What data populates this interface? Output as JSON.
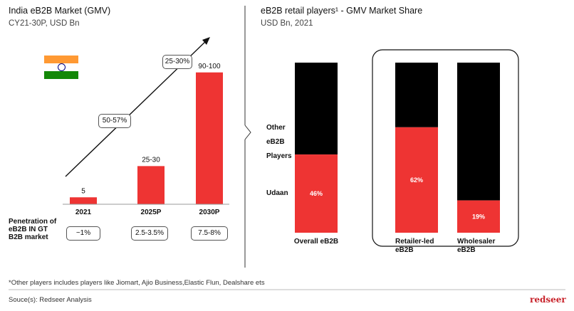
{
  "left": {
    "title": "India eB2B Market (GMV)",
    "subtitle": "CY21-30P, USD Bn",
    "growth_labels": [
      "50-57%",
      "25-30%"
    ],
    "penetration_label": [
      "Penetration of",
      "eB2B IN GT",
      "B2B market"
    ],
    "penetration_values": [
      "~1%",
      "2.5-3.5%",
      "7.5-8%"
    ]
  },
  "right": {
    "title": "eB2B retail players¹ - GMV Market Share",
    "subtitle": "USD Bn, 2021",
    "other_label": [
      "Other",
      "eB2B",
      "Players"
    ],
    "udaan_label": "Udaan"
  },
  "footer": {
    "note": "*Other players includes players like Jiomart, Ajio Business,Elastic Flun, Dealshare ets",
    "source": "Souce(s): Redseer Analysis",
    "brand": "redseer"
  },
  "colors": {
    "red": "#ee3433",
    "black": "#000000",
    "grey": "#444444"
  },
  "chart_data": [
    {
      "type": "bar",
      "title": "India eB2B Market (GMV)",
      "categories": [
        "2021",
        "2025P",
        "2030P"
      ],
      "values": [
        5,
        27.5,
        95
      ],
      "value_labels": [
        "5",
        "25-30",
        "90-100"
      ],
      "ylim": [
        0,
        100
      ]
    },
    {
      "type": "bar",
      "stacked": true,
      "title": "eB2B retail players¹ - GMV Market Share",
      "categories": [
        "Overall eB2B",
        "Retailer-led eB2B",
        "Wholesaler eB2B"
      ],
      "category_lines": [
        [
          "Overall eB2B"
        ],
        [
          "Retailer-led",
          "eB2B"
        ],
        [
          "Wholesaler",
          "eB2B"
        ]
      ],
      "series": [
        {
          "name": "Udaan",
          "values": [
            46,
            62,
            19
          ],
          "labels": [
            "46%",
            "62%",
            "19%"
          ]
        },
        {
          "name": "Other eB2B Players",
          "values": [
            54,
            38,
            81
          ]
        }
      ],
      "ylim": [
        0,
        100
      ]
    }
  ]
}
